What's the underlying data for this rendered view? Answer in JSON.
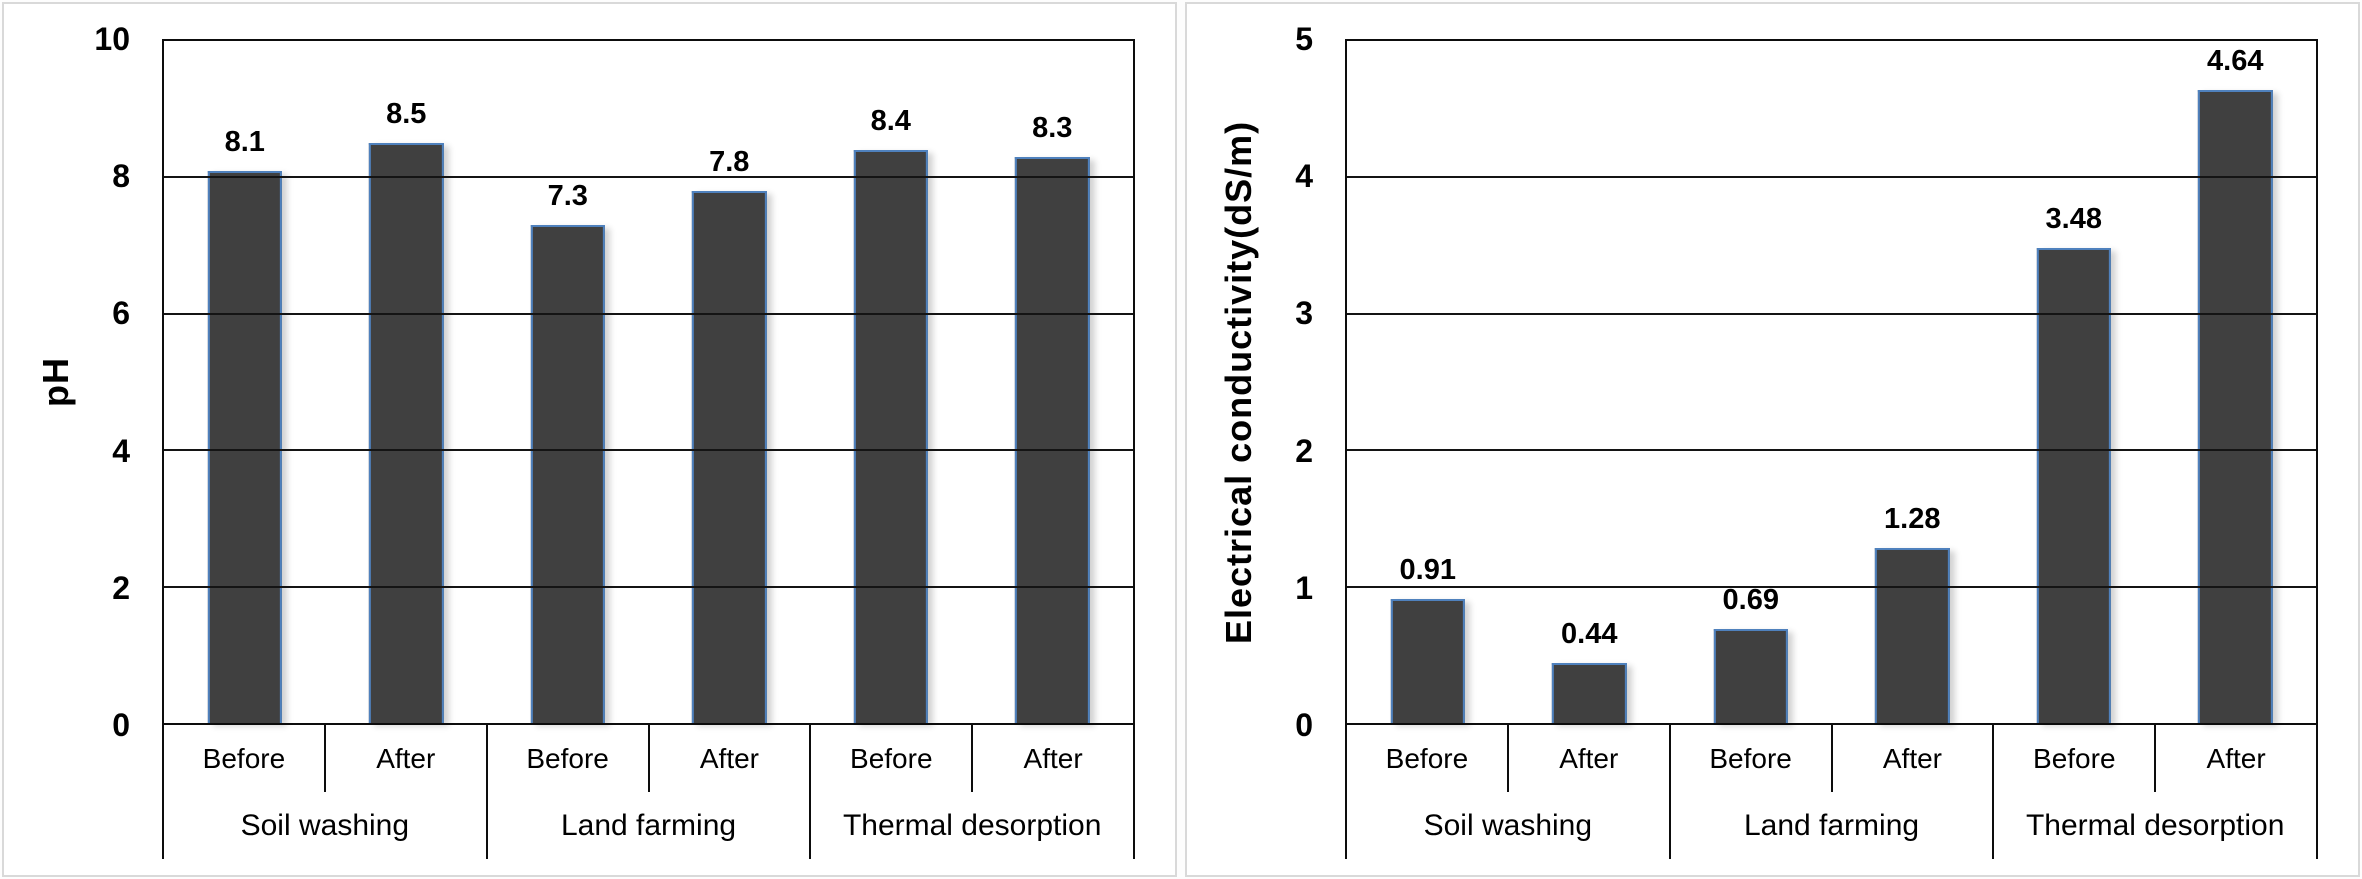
{
  "style": {
    "bar_fill": "#404040",
    "bar_border": "#4f81bd",
    "axis_color": "#0d0d0d",
    "grid_color": "#141414",
    "panel_border": "#d9d9d9",
    "text_color": "#000000"
  },
  "chart_data": [
    {
      "type": "bar",
      "title": "",
      "xlabel": "",
      "ylabel": "pH",
      "ylim": [
        0,
        10
      ],
      "yticks": [
        0,
        2,
        4,
        6,
        8,
        10
      ],
      "grid": true,
      "legend": "none",
      "group_labels": [
        "Soil washing",
        "Land farming",
        "Thermal desorption"
      ],
      "categories": [
        "Before",
        "After",
        "Before",
        "After",
        "Before",
        "After"
      ],
      "values": [
        8.1,
        8.5,
        7.3,
        7.8,
        8.4,
        8.3
      ],
      "data_labels": [
        "8.1",
        "8.5",
        "7.3",
        "7.8",
        "8.4",
        "8.3"
      ]
    },
    {
      "type": "bar",
      "title": "",
      "xlabel": "",
      "ylabel": "Electrical conductivity(dS/m)",
      "ylim": [
        0,
        5
      ],
      "yticks": [
        0,
        1,
        2,
        3,
        4,
        5
      ],
      "grid": true,
      "legend": "none",
      "group_labels": [
        "Soil washing",
        "Land farming",
        "Thermal desorption"
      ],
      "categories": [
        "Before",
        "After",
        "Before",
        "After",
        "Before",
        "After"
      ],
      "values": [
        0.91,
        0.44,
        0.69,
        1.28,
        3.48,
        4.64
      ],
      "data_labels": [
        "0.91",
        "0.44",
        "0.69",
        "1.28",
        "3.48",
        "4.64"
      ]
    }
  ]
}
